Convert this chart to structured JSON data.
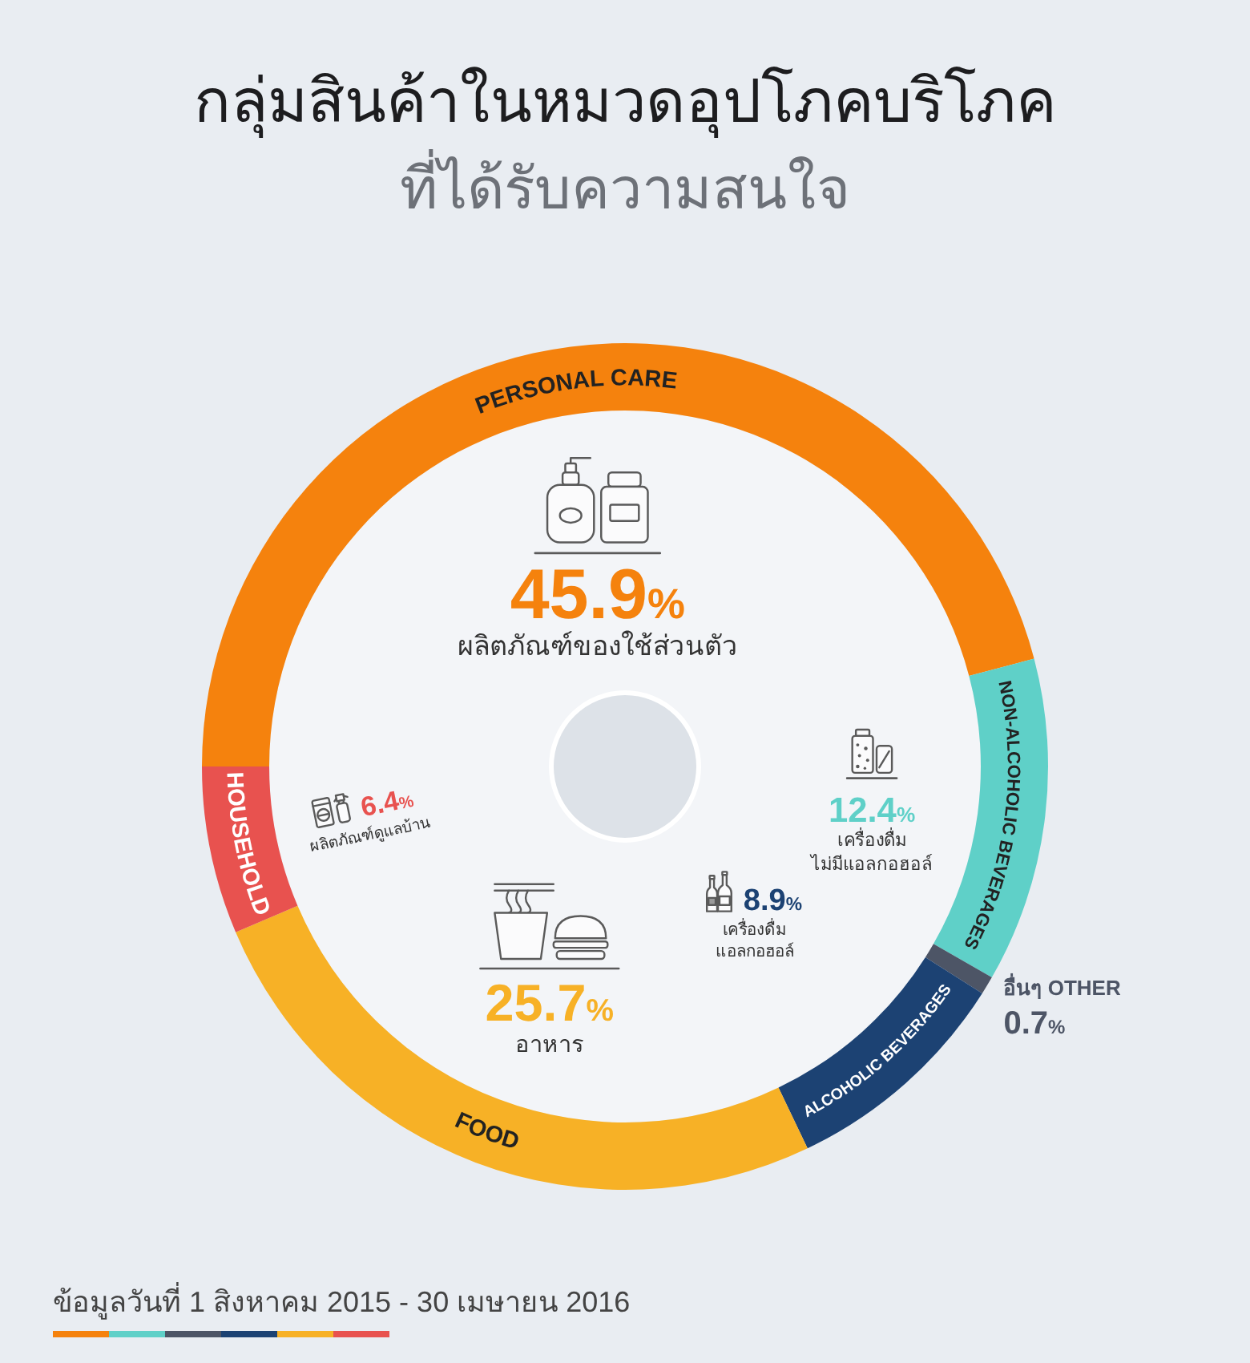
{
  "chart_data": {
    "type": "donut",
    "title": "กลุ่มสินค้าในหมวดอุปโภคบริโภค",
    "subtitle": "ที่ได้รับความสนใจ",
    "categories": [
      "PERSONAL CARE",
      "NON-ALCOHOLIC BEVERAGES",
      "อื่นๆ OTHER",
      "ALCOHOLIC BEVERAGES",
      "FOOD",
      "HOUSEHOLD"
    ],
    "values": [
      45.9,
      12.4,
      0.7,
      8.9,
      25.7,
      6.4
    ],
    "colors": [
      "#f5820d",
      "#5fd0c8",
      "#4d5566",
      "#1c4273",
      "#f7b126",
      "#e8524f"
    ],
    "value_labels": [
      "45.9%",
      "12.4%",
      "0.7%",
      "8.9%",
      "25.7%",
      "6.4%"
    ],
    "annotations": [
      {
        "text": "ผลิตภัณฑ์ของใช้ส่วนตัว",
        "x": "PERSONAL CARE"
      },
      {
        "text": "เครื่องดื่ม\nไม่มีแอลกอฮอล์",
        "x": "NON-ALCOHOLIC BEVERAGES"
      },
      {
        "text": "เครื่องดื่ม\nแอลกอฮอล์",
        "x": "ALCOHOLIC BEVERAGES"
      },
      {
        "text": "อาหาร",
        "x": "FOOD"
      },
      {
        "text": "ผลิตภัณฑ์ดูแลบ้าน",
        "x": "HOUSEHOLD"
      },
      "ข้อมูลวันที่ 1 สิงหาคม 2015 - 30 เมษายน 2016"
    ]
  }
}
